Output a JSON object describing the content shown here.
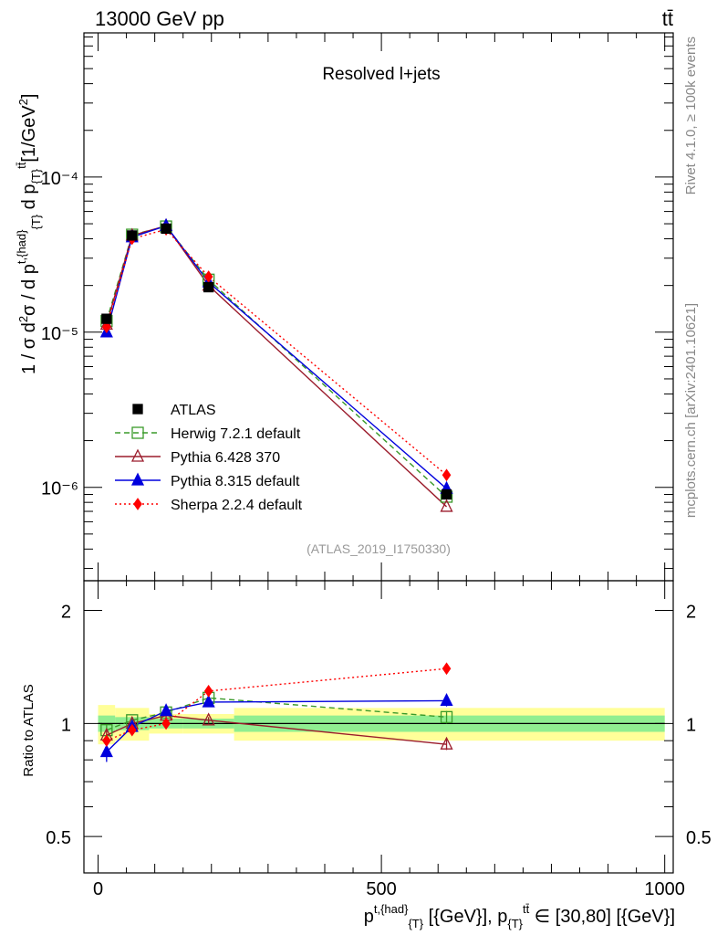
{
  "header": {
    "energy": "13000 GeV pp",
    "process": "tt̄",
    "rivet": "Rivet 4.1.0, ≥ 100k events",
    "site": "mcplots.cern.ch [arXiv:2401.10621]"
  },
  "chart_data": {
    "type": "line",
    "title": "Resolved l+jets",
    "analysis_id": "(ATLAS_2019_I1750330)",
    "ylabel": "1 / σ d²σ / d p^{t,{had}}_{T} d p_{T}^{tt̄} [1/GeV²]",
    "ratio_ylabel": "Ratio to ATLAS",
    "xlabel": "p^{t,{had}}_{T} [{GeV}], p_{T}^{tt̄} ∈ [30,80] [{GeV}]",
    "xlim": [
      -25,
      1015
    ],
    "ylim": [
      2.5e-07,
      0.00085
    ],
    "ratio_ylim": [
      0.4,
      2.4
    ],
    "ylog": true,
    "x_ticks": [
      "0",
      "500",
      "1000"
    ],
    "y_ticks": [
      "10⁻⁶",
      "10⁻⁵",
      "10⁻⁴"
    ],
    "ratio_ticks": [
      "0.5",
      "1",
      "2"
    ],
    "x": [
      15,
      60,
      120,
      195,
      615
    ],
    "series": [
      {
        "name": "ATLAS",
        "marker": "square-filled",
        "color": "#000000",
        "dash": "",
        "line": false,
        "values": [
          1.22e-05,
          4.2e-05,
          4.65e-05,
          1.95e-05,
          9e-07
        ],
        "ratio": [
          1.0,
          1.0,
          1.0,
          1.0,
          1.0
        ]
      },
      {
        "name": "Herwig 7.2.1 default",
        "marker": "square-open",
        "color": "#3a9a2a",
        "dash": "6,4",
        "line": true,
        "values": [
          1.18e-05,
          4.25e-05,
          4.8e-05,
          2.18e-05,
          8.7e-07
        ],
        "ratio": [
          0.96,
          1.02,
          1.07,
          1.17,
          1.04
        ],
        "ratio_err": [
          0.03,
          0.02,
          0.02,
          0.02,
          0.04
        ]
      },
      {
        "name": "Pythia 6.428 370",
        "marker": "triangle-open",
        "color": "#9b1c2c",
        "dash": "",
        "line": true,
        "values": [
          1.12e-05,
          4.2e-05,
          4.85e-05,
          2e-05,
          7.5e-07
        ],
        "ratio": [
          0.93,
          1.0,
          1.05,
          1.02,
          0.88
        ],
        "ratio_err": [
          0.03,
          0.02,
          0.02,
          0.02,
          0.03
        ]
      },
      {
        "name": "Pythia 8.315 default",
        "marker": "triangle-filled",
        "color": "#0000dd",
        "dash": "",
        "line": true,
        "values": [
          1e-05,
          4.1e-05,
          4.85e-05,
          2.1e-05,
          9.8e-07
        ],
        "ratio": [
          0.84,
          0.98,
          1.08,
          1.14,
          1.15
        ],
        "ratio_err": [
          0.05,
          0.02,
          0.02,
          0.02,
          0.04
        ]
      },
      {
        "name": "Sherpa 2.2.4 default",
        "marker": "diamond-filled",
        "color": "#ff0000",
        "dash": "2,3",
        "line": true,
        "values": [
          1.08e-05,
          4e-05,
          4.6e-05,
          2.28e-05,
          1.2e-06
        ],
        "ratio": [
          0.9,
          0.96,
          1.0,
          1.22,
          1.4
        ],
        "ratio_err": [
          0.03,
          0.02,
          0.02,
          0.02,
          0.03
        ]
      }
    ],
    "uncertainty_bands": {
      "bins": [
        [
          0,
          30
        ],
        [
          30,
          90
        ],
        [
          90,
          150
        ],
        [
          150,
          240
        ],
        [
          240,
          1000
        ]
      ],
      "stat": [
        0.05,
        0.04,
        0.03,
        0.03,
        0.05
      ],
      "total": [
        0.12,
        0.1,
        0.06,
        0.06,
        0.1
      ]
    }
  }
}
